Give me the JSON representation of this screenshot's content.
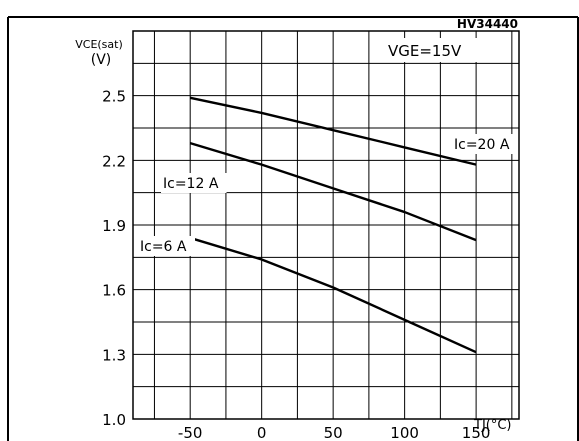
{
  "chart_data": {
    "type": "line",
    "figure_id": "HV34440",
    "ylabel_line1": "VCE(sat)",
    "ylabel_line2": "(V)",
    "xlabel": "TJ(°C)",
    "annotation": "VGE=15V",
    "xlim": [
      -90,
      180
    ],
    "ylim": [
      1.0,
      2.8
    ],
    "x_ticks": [
      -50,
      0,
      50,
      100,
      150
    ],
    "y_ticks": [
      1.0,
      1.3,
      1.6,
      1.9,
      2.2,
      2.5
    ],
    "x_tick_labels": [
      "-50",
      "0",
      "50",
      "100",
      "150"
    ],
    "y_tick_labels": [
      "1.0",
      "1.3",
      "1.6",
      "1.9",
      "2.2",
      "2.5"
    ],
    "grid": true,
    "series": [
      {
        "name": "Ic=20 A",
        "color": "#000000",
        "x": [
          -50,
          0,
          50,
          100,
          150
        ],
        "y": [
          2.49,
          2.42,
          2.34,
          2.26,
          2.18
        ]
      },
      {
        "name": "Ic=12 A",
        "color": "#000000",
        "x": [
          -50,
          0,
          50,
          100,
          150
        ],
        "y": [
          2.28,
          2.18,
          2.07,
          1.96,
          1.83
        ]
      },
      {
        "name": "Ic=6 A",
        "color": "#000000",
        "x": [
          -50,
          0,
          50,
          100,
          150
        ],
        "y": [
          1.84,
          1.74,
          1.61,
          1.46,
          1.31
        ]
      }
    ]
  }
}
